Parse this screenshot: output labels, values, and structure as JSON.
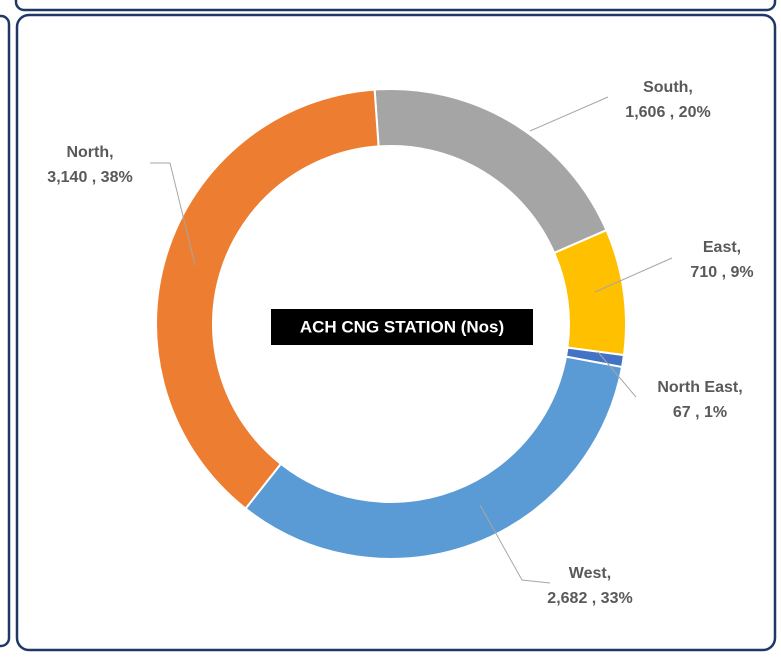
{
  "chart_data": {
    "type": "donut",
    "title": "ACH CNG STATION (Nos)",
    "categories": [
      "South,",
      "East,",
      "North East,",
      "West,",
      "North,"
    ],
    "values": [
      1606,
      710,
      67,
      2682,
      3140
    ],
    "value_labels": [
      "1,606 , 20%",
      "710 , 9%",
      "67 , 1%",
      "2,682 , 33%",
      "3,140 , 38%"
    ],
    "colors": [
      "#a5a5a5",
      "#ffc000",
      "#4472c4",
      "#5b9bd5",
      "#ed7d31"
    ]
  }
}
